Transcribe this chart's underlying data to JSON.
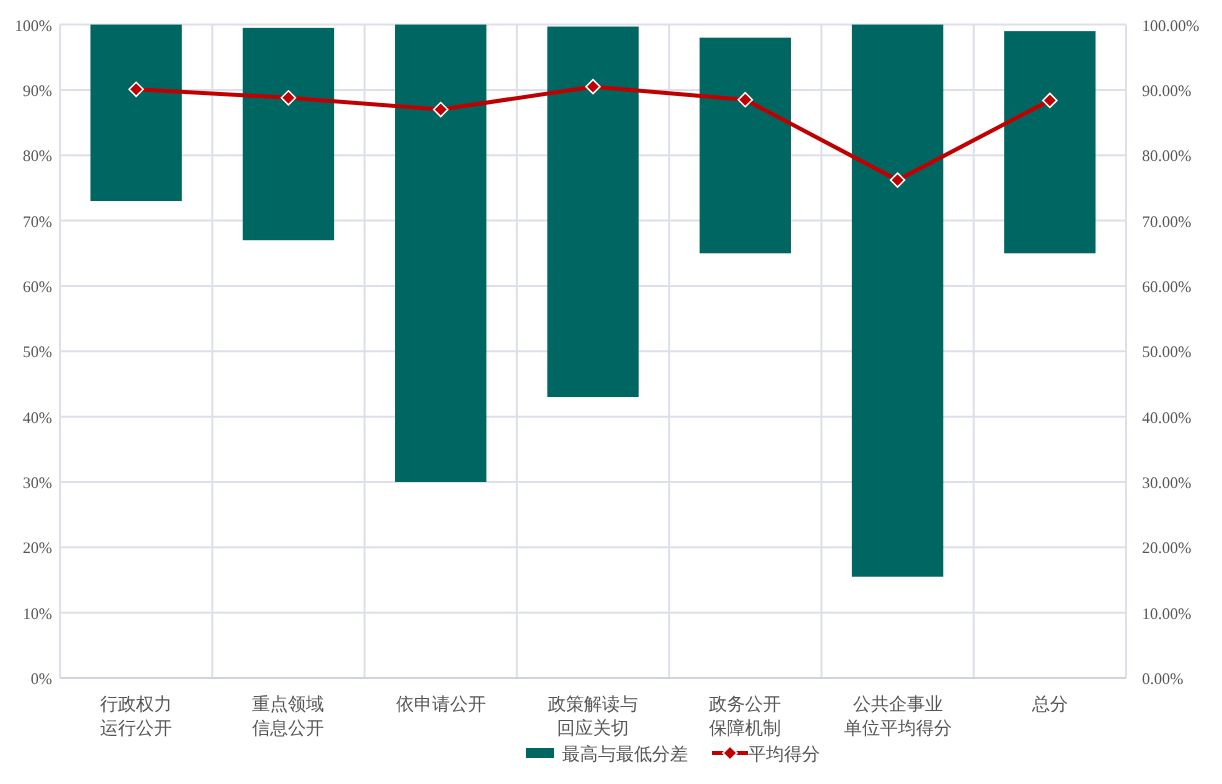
{
  "chart_data": {
    "type": "bar",
    "categories": [
      "行政权力运行公开",
      "重点领域信息公开",
      "依申请公开",
      "政策解读与回应关切",
      "政务公开保障机制",
      "公共企事业单位平均得分",
      "总分"
    ],
    "series": [
      {
        "name": "最高与最低分差",
        "color": "#006661",
        "base": [
          73,
          67,
          30,
          43,
          65,
          15.5,
          65
        ],
        "values": [
          27,
          32.5,
          70,
          56.7,
          33,
          84.5,
          34
        ]
      },
      {
        "name": "平均得分",
        "type": "line",
        "color": "#c00000",
        "marker": "diamond",
        "line_style": "solid",
        "values": [
          90.1,
          88.8,
          87,
          90.5,
          88.5,
          76.2,
          88.4
        ]
      }
    ],
    "ylim": [
      0,
      100
    ],
    "yticks": [
      {
        "value": 0,
        "label": "0%"
      },
      {
        "value": 10,
        "label": "10%"
      },
      {
        "value": 20,
        "label": "20%"
      },
      {
        "value": 30,
        "label": "30%"
      },
      {
        "value": 40,
        "label": "40%"
      },
      {
        "value": 50,
        "label": "50%"
      },
      {
        "value": 60,
        "label": "60%"
      },
      {
        "value": 70,
        "label": "70%"
      },
      {
        "value": 80,
        "label": "80%"
      },
      {
        "value": 90,
        "label": "90%"
      },
      {
        "value": 100,
        "label": "100%"
      }
    ],
    "y2lim": [
      0,
      100
    ],
    "y2ticks": [
      {
        "value": 0,
        "label": "0.00%"
      },
      {
        "value": 10,
        "label": "10.00%"
      },
      {
        "value": 20,
        "label": "20.00%"
      },
      {
        "value": 30,
        "label": "30.00%"
      },
      {
        "value": 40,
        "label": "40.00%"
      },
      {
        "value": 50,
        "label": "50.00%"
      },
      {
        "value": 60,
        "label": "60.00%"
      },
      {
        "value": 70,
        "label": "70.00%"
      },
      {
        "value": 80,
        "label": "80.00%"
      },
      {
        "value": 90,
        "label": "90.00%"
      },
      {
        "value": 100,
        "label": "100.00%"
      }
    ],
    "grid": true,
    "legend": "bottom"
  }
}
